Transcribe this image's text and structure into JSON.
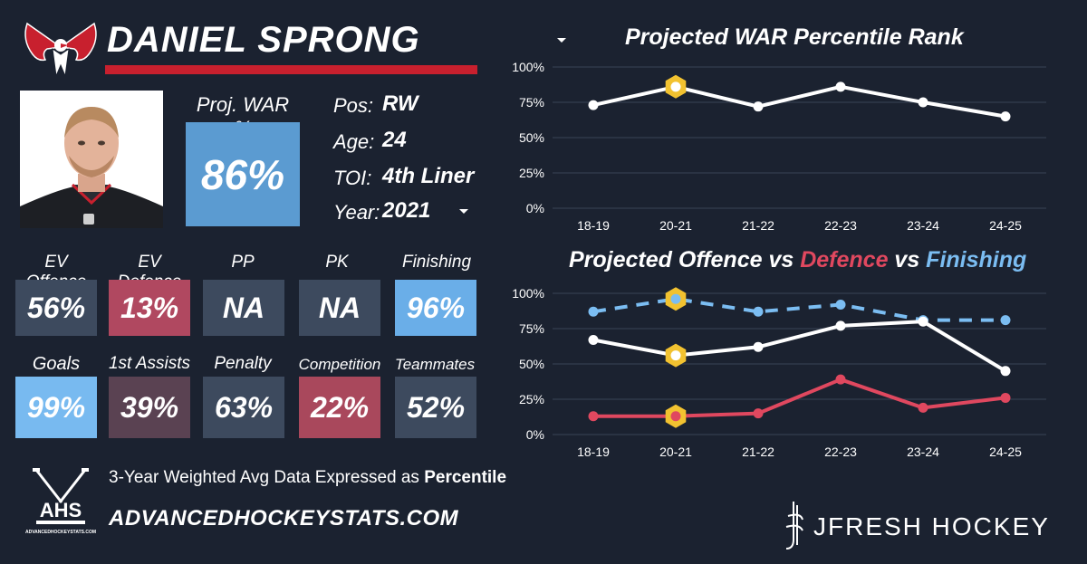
{
  "header": {
    "player_name": "DANIEL SPRONG"
  },
  "war": {
    "label": "Proj. WAR %",
    "value": "86%"
  },
  "info": [
    {
      "label": "Pos:",
      "value": "RW"
    },
    {
      "label": "Age:",
      "value": "24"
    },
    {
      "label": "TOI:",
      "value": "4th Liner"
    },
    {
      "label": "Year:",
      "value": "2021"
    }
  ],
  "stats_row1": [
    {
      "label": "EV Offence",
      "value": "56%",
      "color": "#3d4a5e"
    },
    {
      "label": "EV Defence",
      "value": "13%",
      "color": "#b04860"
    },
    {
      "label": "PP",
      "value": "NA",
      "color": "#3d4a5e"
    },
    {
      "label": "PK",
      "value": "NA",
      "color": "#3d4a5e"
    },
    {
      "label": "Finishing",
      "value": "96%",
      "color": "#6aaee8"
    }
  ],
  "stats_row2": [
    {
      "label": "Goals",
      "value": "99%",
      "color": "#78baf0"
    },
    {
      "label": "1st Assists",
      "value": "39%",
      "color": "#5a4252"
    },
    {
      "label": "Penalty",
      "value": "63%",
      "color": "#3d4a5e"
    },
    {
      "label": "Competition",
      "value": "22%",
      "color": "#a9485c"
    },
    {
      "label": "Teammates",
      "value": "52%",
      "color": "#3d4a5e"
    }
  ],
  "footer": {
    "text_prefix": "3-Year Weighted Avg Data Expressed as ",
    "text_bold": "Percentile",
    "url": "ADVANCEDHOCKEYSTATS.COM",
    "ahs_logo_text": "AHS",
    "ahs_logo_subtext": "ADVANCEDHOCKEYSTATS.COM",
    "jfresh_brand": "JFRESH HOCKEY"
  },
  "chart_data": [
    {
      "type": "line",
      "title": "Projected WAR Percentile Rank",
      "categories": [
        "18-19",
        "20-21",
        "21-22",
        "22-23",
        "23-24",
        "24-25"
      ],
      "y_ticks": [
        "0%",
        "25%",
        "50%",
        "75%",
        "100%"
      ],
      "ylim": [
        0,
        100
      ],
      "grid": true,
      "highlight_index": 1,
      "series": [
        {
          "values": [
            73,
            86,
            72,
            86,
            75,
            65
          ],
          "color": "#ffffff",
          "dashed": false
        }
      ]
    },
    {
      "type": "line",
      "title_parts": [
        "Projected Offence vs ",
        "Defence",
        " vs ",
        "Finishing"
      ],
      "categories": [
        "18-19",
        "20-21",
        "21-22",
        "22-23",
        "23-24",
        "24-25"
      ],
      "y_ticks": [
        "0%",
        "25%",
        "50%",
        "75%",
        "100%"
      ],
      "ylim": [
        0,
        100
      ],
      "grid": true,
      "highlight_index": 1,
      "series": [
        {
          "values": [
            87,
            96,
            87,
            92,
            81,
            81
          ],
          "color": "#7bbdf2",
          "dashed": true
        },
        {
          "values": [
            67,
            56,
            62,
            77,
            80,
            45
          ],
          "color": "#ffffff",
          "dashed": false
        },
        {
          "values": [
            13,
            13,
            15,
            39,
            19,
            26
          ],
          "color": "#e0485f",
          "dashed": false
        }
      ]
    }
  ]
}
